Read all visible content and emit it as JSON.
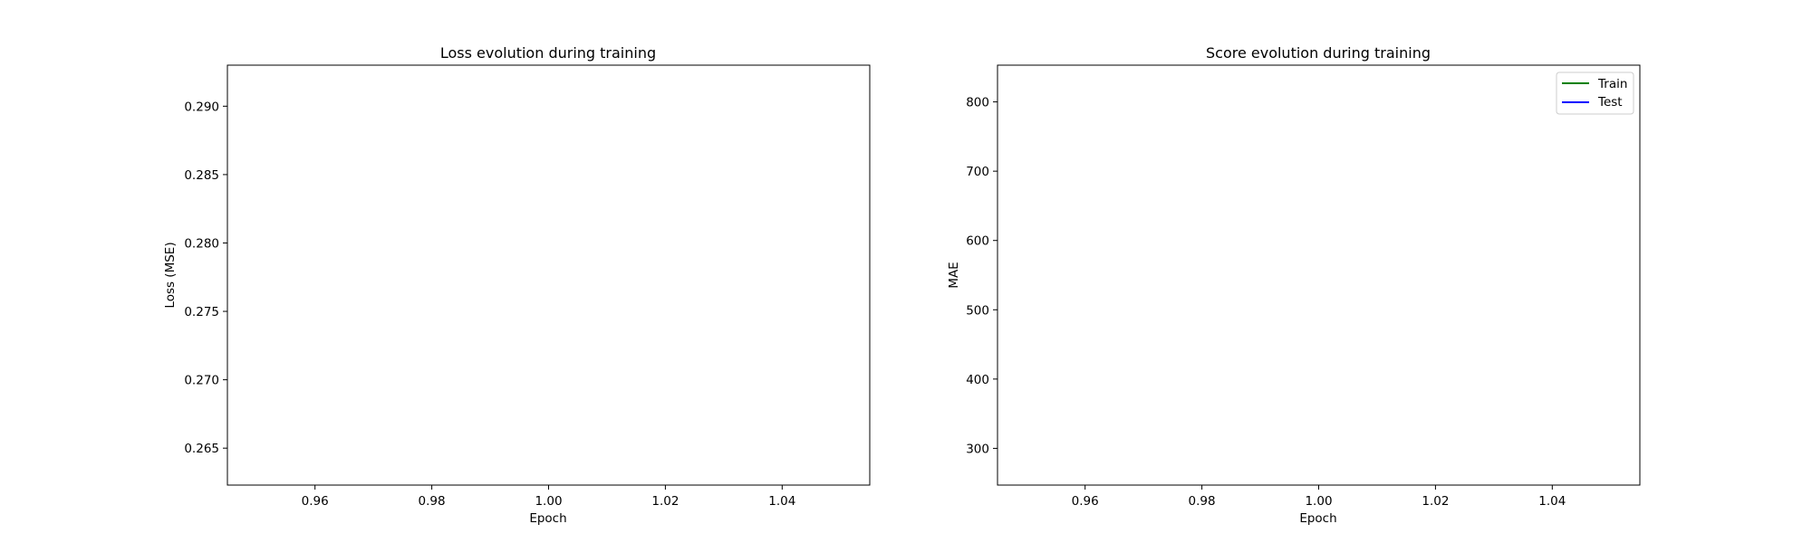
{
  "chart_data": [
    {
      "type": "line",
      "title": "Loss evolution during training",
      "xlabel": "Epoch",
      "ylabel": "Loss (MSE)",
      "xlim": [
        0.945,
        1.055
      ],
      "ylim": [
        0.2623,
        0.293
      ],
      "xticks": [
        0.96,
        0.98,
        1.0,
        1.02,
        1.04
      ],
      "xtick_labels": [
        "0.96",
        "0.98",
        "1.00",
        "1.02",
        "1.04"
      ],
      "yticks": [
        0.265,
        0.27,
        0.275,
        0.28,
        0.285,
        0.29
      ],
      "ytick_labels": [
        "0.265",
        "0.270",
        "0.275",
        "0.280",
        "0.285",
        "0.290"
      ],
      "grid": false,
      "series": []
    },
    {
      "type": "line",
      "title": "Score evolution during training",
      "xlabel": "Epoch",
      "ylabel": "MAE",
      "xlim": [
        0.945,
        1.055
      ],
      "ylim": [
        247,
        853
      ],
      "xticks": [
        0.96,
        0.98,
        1.0,
        1.02,
        1.04
      ],
      "xtick_labels": [
        "0.96",
        "0.98",
        "1.00",
        "1.02",
        "1.04"
      ],
      "yticks": [
        300,
        400,
        500,
        600,
        700,
        800
      ],
      "ytick_labels": [
        "300",
        "400",
        "500",
        "600",
        "700",
        "800"
      ],
      "grid": false,
      "legend_position": "top-right",
      "series": [
        {
          "name": "Train",
          "color": "#008000",
          "x": [],
          "y": []
        },
        {
          "name": "Test",
          "color": "#0000ff",
          "x": [],
          "y": []
        }
      ]
    }
  ]
}
